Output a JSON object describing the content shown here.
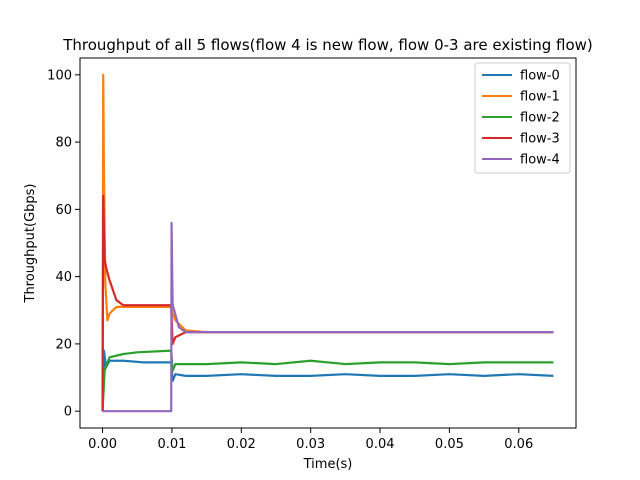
{
  "chart_data": {
    "type": "line",
    "title": "Throughput of all 5 flows(flow 4 is new flow, flow 0-3 are existing flow)",
    "xlabel": "Time(s)",
    "ylabel": "Throughput(Gbps)",
    "xlim": [
      -0.00325,
      0.06825
    ],
    "ylim": [
      -5,
      105
    ],
    "xticks": [
      0.0,
      0.01,
      0.02,
      0.03,
      0.04,
      0.05,
      0.06
    ],
    "xtick_labels": [
      "0.00",
      "0.01",
      "0.02",
      "0.03",
      "0.04",
      "0.05",
      "0.06"
    ],
    "yticks": [
      0,
      20,
      40,
      60,
      80,
      100
    ],
    "ytick_labels": [
      "0",
      "20",
      "40",
      "60",
      "80",
      "100"
    ],
    "grid": false,
    "legend_position": "top-right",
    "series": [
      {
        "name": "flow-0",
        "color": "#1f77b4",
        "x": [
          0.0,
          0.0002,
          0.0005,
          0.001,
          0.003,
          0.006,
          0.0099,
          0.0101,
          0.0105,
          0.012,
          0.015,
          0.02,
          0.025,
          0.03,
          0.035,
          0.04,
          0.045,
          0.05,
          0.055,
          0.06,
          0.065
        ],
        "y": [
          0,
          18,
          13,
          15,
          15,
          14.5,
          14.5,
          9,
          11,
          10.5,
          10.5,
          11,
          10.5,
          10.5,
          11,
          10.5,
          10.5,
          11,
          10.5,
          11,
          10.5
        ]
      },
      {
        "name": "flow-1",
        "color": "#ff7f0e",
        "x": [
          0.0,
          0.0001,
          0.0002,
          0.0004,
          0.0007,
          0.001,
          0.002,
          0.004,
          0.006,
          0.0099,
          0.0101,
          0.0105,
          0.012,
          0.015,
          0.02,
          0.025,
          0.03,
          0.035,
          0.04,
          0.045,
          0.05,
          0.055,
          0.06,
          0.065
        ],
        "y": [
          0,
          100,
          72,
          38,
          27,
          29,
          31,
          31,
          31,
          31,
          29,
          27,
          24,
          23.5,
          23.5,
          23.5,
          23.5,
          23.5,
          23.5,
          23.5,
          23.5,
          23.5,
          23.5,
          23.5
        ]
      },
      {
        "name": "flow-2",
        "color": "#2ca02c",
        "x": [
          0.0,
          0.0003,
          0.0008,
          0.001,
          0.003,
          0.005,
          0.0099,
          0.0101,
          0.0105,
          0.012,
          0.015,
          0.02,
          0.025,
          0.03,
          0.035,
          0.04,
          0.045,
          0.05,
          0.055,
          0.06,
          0.065
        ],
        "y": [
          0,
          12,
          15,
          16,
          17,
          17.5,
          18,
          12,
          14,
          14,
          14,
          14.5,
          14,
          15,
          14,
          14.5,
          14.5,
          14,
          14.5,
          14.5,
          14.5
        ]
      },
      {
        "name": "flow-3",
        "color": "#d62728",
        "x": [
          0.0,
          0.0001,
          0.0003,
          0.0006,
          0.001,
          0.002,
          0.003,
          0.006,
          0.0099,
          0.0101,
          0.0105,
          0.012,
          0.015,
          0.02,
          0.025,
          0.03,
          0.035,
          0.04,
          0.045,
          0.05,
          0.055,
          0.06,
          0.065
        ],
        "y": [
          0,
          64,
          45,
          42,
          39,
          33,
          31.5,
          31.5,
          31.5,
          20,
          22,
          23.5,
          23.5,
          23.5,
          23.5,
          23.5,
          23.5,
          23.5,
          23.5,
          23.5,
          23.5,
          23.5,
          23.5
        ]
      },
      {
        "name": "flow-4",
        "color": "#9467bd",
        "x": [
          0.0,
          0.0099,
          0.00995,
          0.0101,
          0.0102,
          0.0106,
          0.011,
          0.012,
          0.015,
          0.02,
          0.025,
          0.03,
          0.035,
          0.04,
          0.045,
          0.05,
          0.055,
          0.06,
          0.065
        ],
        "y": [
          0,
          0,
          56,
          32,
          31,
          28,
          25,
          23.5,
          23.5,
          23.5,
          23.5,
          23.5,
          23.5,
          23.5,
          23.5,
          23.5,
          23.5,
          23.5,
          23.5
        ]
      }
    ]
  }
}
